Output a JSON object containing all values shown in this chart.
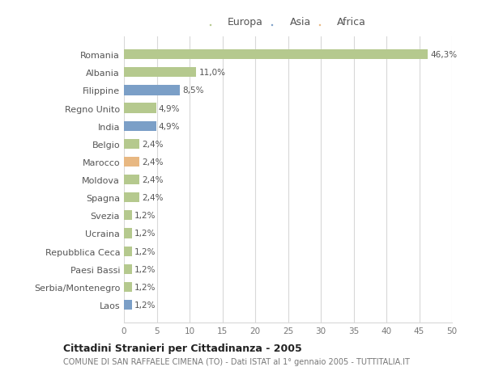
{
  "countries": [
    "Romania",
    "Albania",
    "Filippine",
    "Regno Unito",
    "India",
    "Belgio",
    "Marocco",
    "Moldova",
    "Spagna",
    "Svezia",
    "Ucraina",
    "Repubblica Ceca",
    "Paesi Bassi",
    "Serbia/Montenegro",
    "Laos"
  ],
  "values": [
    46.3,
    11.0,
    8.5,
    4.9,
    4.9,
    2.4,
    2.4,
    2.4,
    2.4,
    1.2,
    1.2,
    1.2,
    1.2,
    1.2,
    1.2
  ],
  "labels": [
    "46,3%",
    "11,0%",
    "8,5%",
    "4,9%",
    "4,9%",
    "2,4%",
    "2,4%",
    "2,4%",
    "2,4%",
    "1,2%",
    "1,2%",
    "1,2%",
    "1,2%",
    "1,2%",
    "1,2%"
  ],
  "continents": [
    "Europa",
    "Europa",
    "Asia",
    "Europa",
    "Asia",
    "Europa",
    "Africa",
    "Europa",
    "Europa",
    "Europa",
    "Europa",
    "Europa",
    "Europa",
    "Europa",
    "Asia"
  ],
  "colors": {
    "Europa": "#b5c98e",
    "Asia": "#7b9fc7",
    "Africa": "#e8b882"
  },
  "xlim": [
    0,
    50
  ],
  "xticks": [
    0,
    5,
    10,
    15,
    20,
    25,
    30,
    35,
    40,
    45,
    50
  ],
  "title": "Cittadini Stranieri per Cittadinanza - 2005",
  "subtitle": "COMUNE DI SAN RAFFAELE CIMENA (TO) - Dati ISTAT al 1° gennaio 2005 - TUTTITALIA.IT",
  "background_color": "#ffffff",
  "plot_background_color": "#ffffff",
  "grid_color": "#d8d8d8"
}
